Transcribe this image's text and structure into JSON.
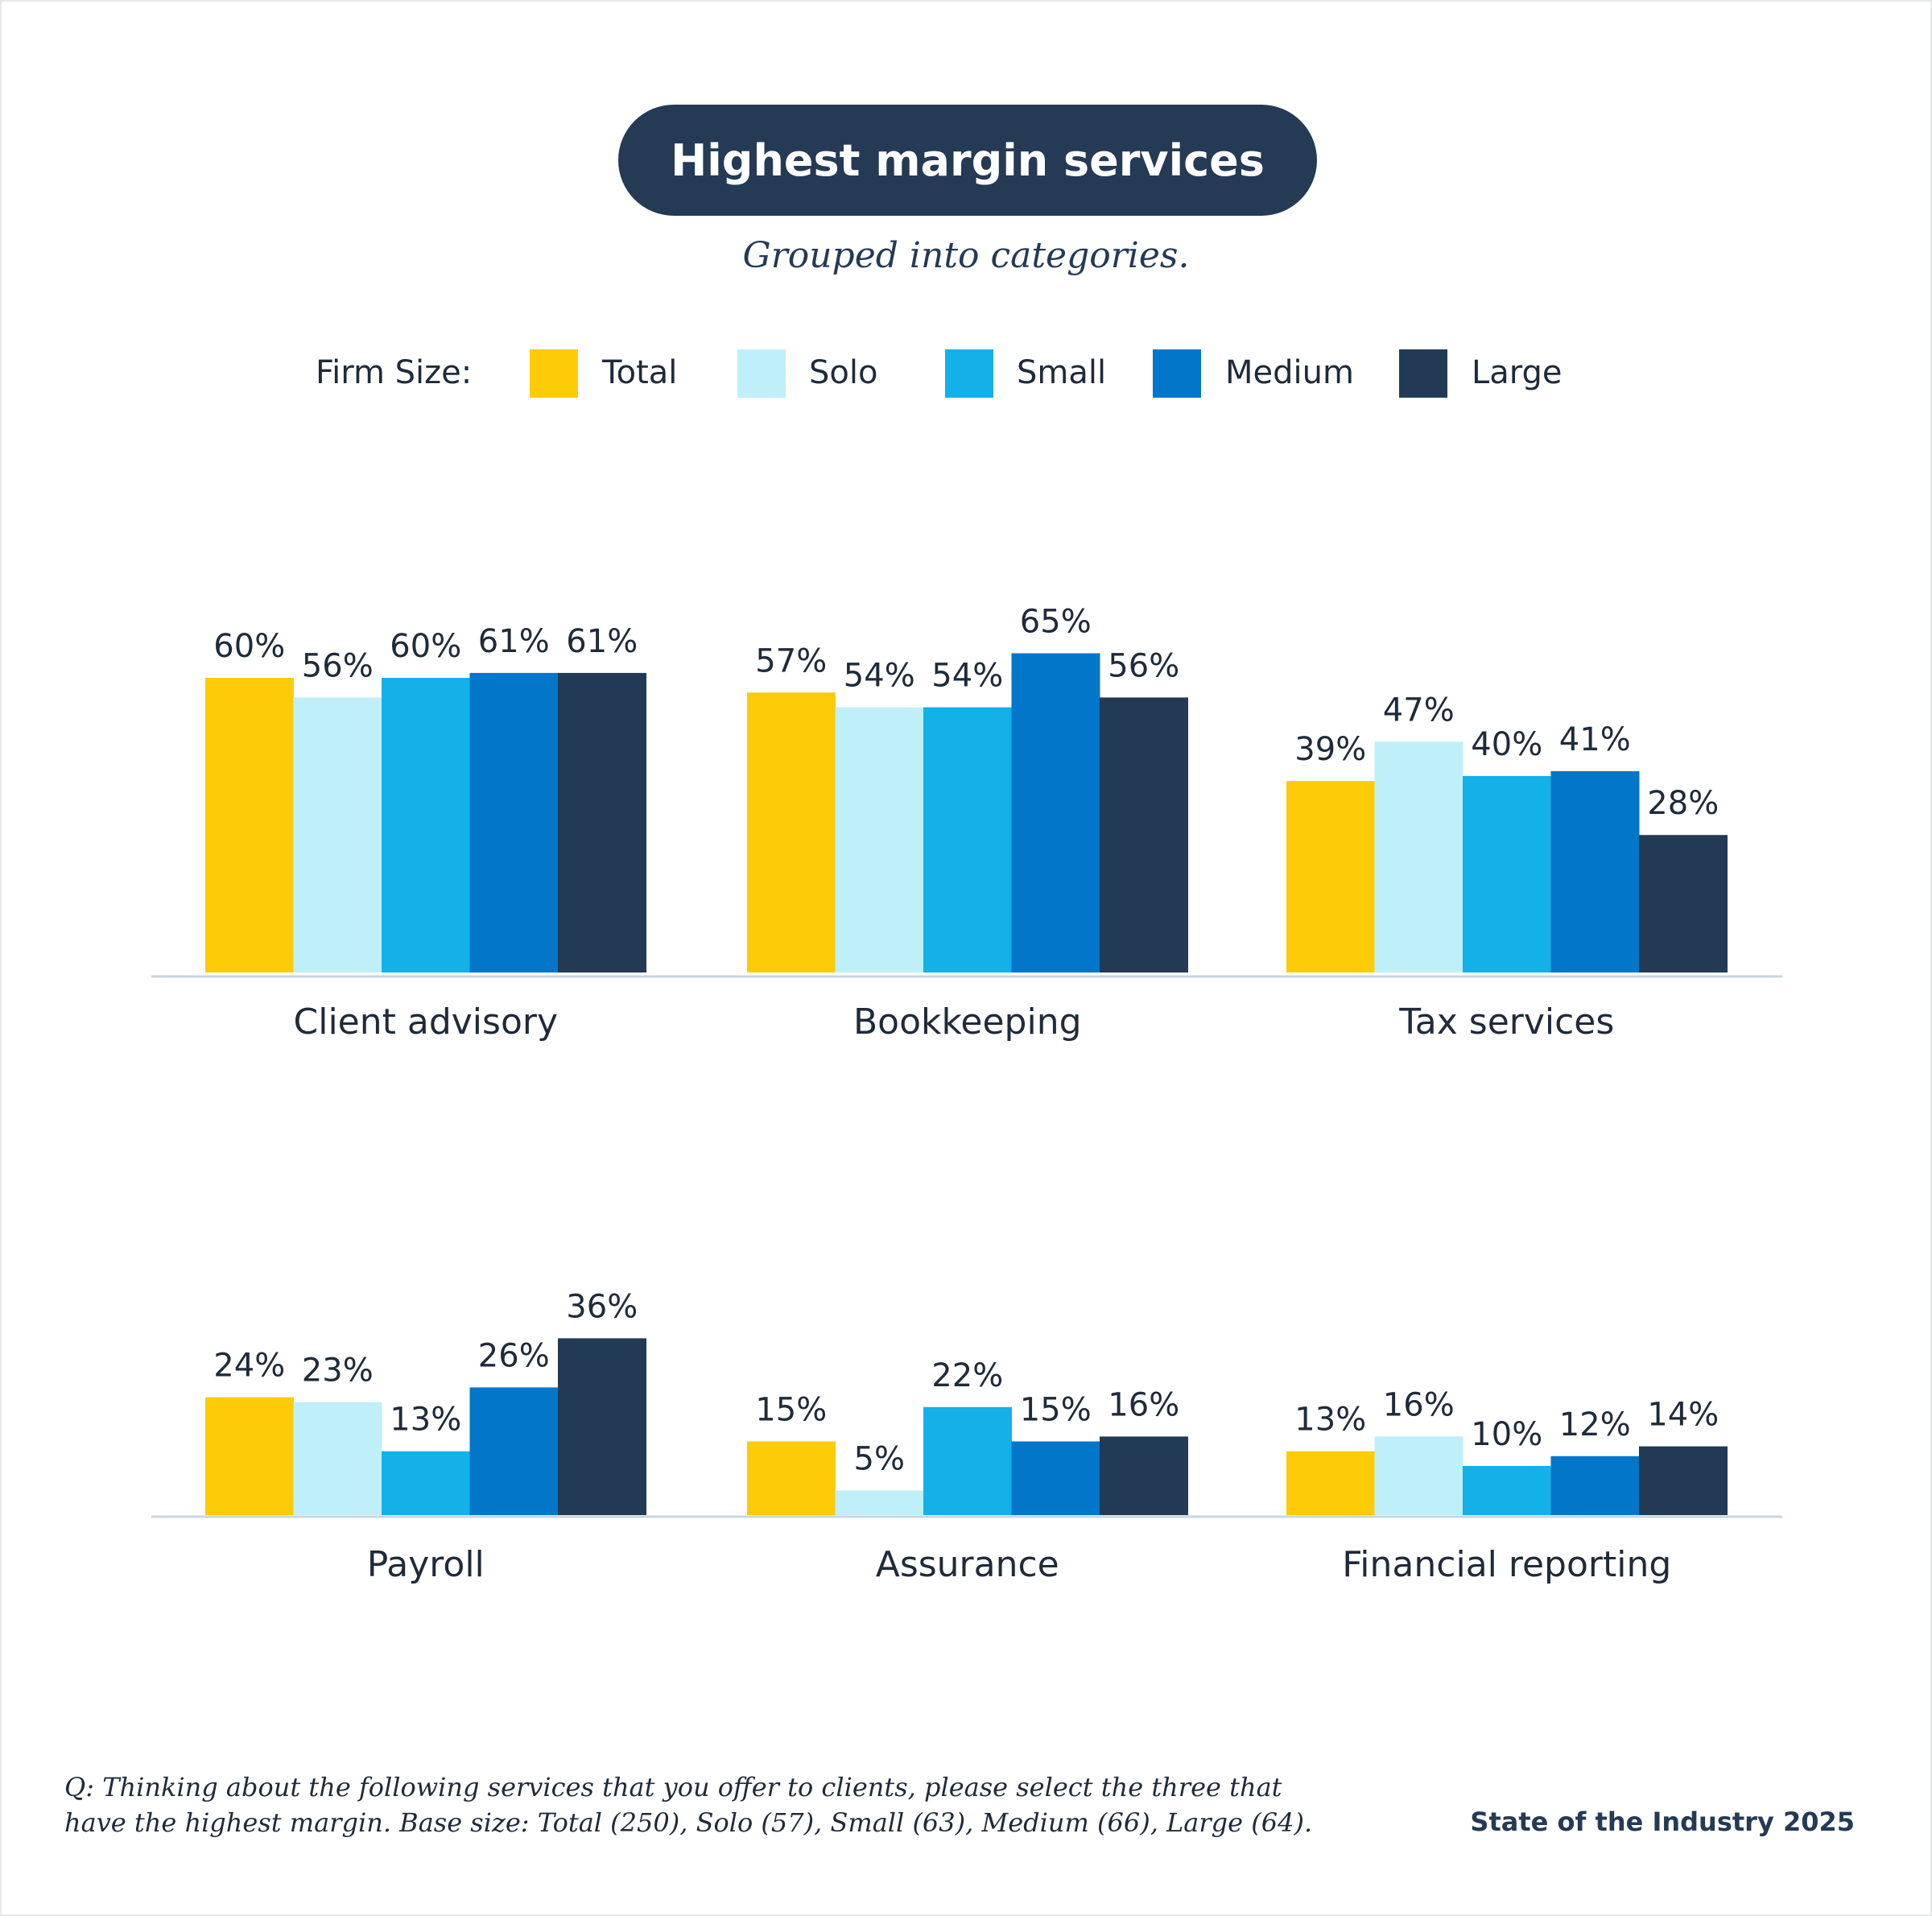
{
  "title": "Highest margin services",
  "subtitle": "Grouped into categories.",
  "legend": {
    "label": "Firm Size:",
    "items": [
      {
        "name": "Total",
        "color": "#fdcb08"
      },
      {
        "name": "Solo",
        "color": "#bff0fa"
      },
      {
        "name": "Small",
        "color": "#14b0e8"
      },
      {
        "name": "Medium",
        "color": "#0276c8"
      },
      {
        "name": "Large",
        "color": "#223a55"
      }
    ]
  },
  "chart_data": {
    "type": "bar",
    "unit": "%",
    "series": [
      "Total",
      "Solo",
      "Small",
      "Medium",
      "Large"
    ],
    "categories": [
      {
        "name": "Client advisory",
        "values": [
          60,
          56,
          60,
          61,
          61
        ]
      },
      {
        "name": "Bookkeeping",
        "values": [
          57,
          54,
          54,
          65,
          56
        ]
      },
      {
        "name": "Tax services",
        "values": [
          39,
          47,
          40,
          41,
          28
        ]
      },
      {
        "name": "Payroll",
        "values": [
          24,
          23,
          13,
          26,
          36
        ]
      },
      {
        "name": "Assurance",
        "values": [
          15,
          5,
          22,
          15,
          16
        ]
      },
      {
        "name": "Financial reporting",
        "values": [
          13,
          16,
          10,
          12,
          14
        ]
      }
    ],
    "labels": [
      [
        "60%",
        "56%",
        "60%",
        "61%",
        "61%"
      ],
      [
        "57%",
        "54%",
        "54%",
        "65%",
        "56%"
      ],
      [
        "39%",
        "47%",
        "40%",
        "41%",
        "28%"
      ],
      [
        "24%",
        "23%",
        "13%",
        "26%",
        "36%"
      ],
      [
        "15%",
        "5%",
        "22%",
        "15%",
        "16%"
      ],
      [
        "13%",
        "16%",
        "10%",
        "12%",
        "14%"
      ]
    ],
    "ylim": [
      0,
      100
    ]
  },
  "footnote": {
    "line1": "Q: Thinking about the following services that you offer to clients, please select the three that",
    "line2": "have the highest margin. Base size: Total (250), Solo (57), Small (63), Medium (66), Large (64)."
  },
  "brand": "State of the Industry 2025"
}
